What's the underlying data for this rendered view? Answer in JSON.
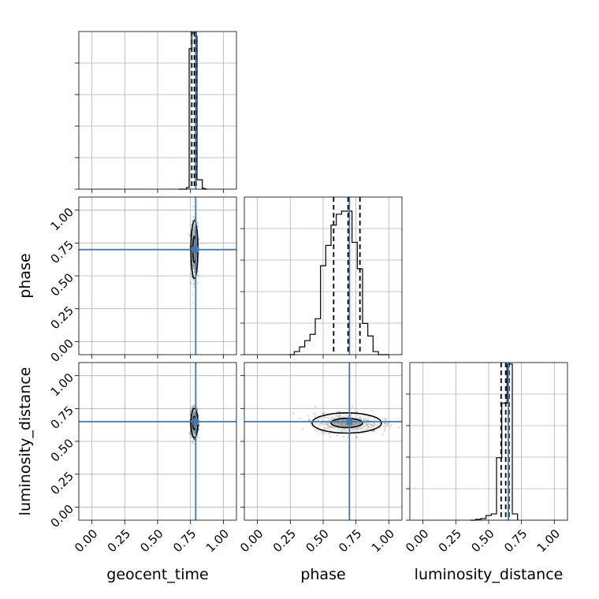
{
  "chart_data": {
    "type": "corner",
    "parameters": [
      "geocent_time",
      "phase",
      "luminosity_distance"
    ],
    "axis_range": [
      -0.1,
      1.1
    ],
    "ticks": [
      0.0,
      0.25,
      0.5,
      0.75,
      1.0
    ],
    "tick_labels": [
      "0.00",
      "0.25",
      "0.50",
      "0.75",
      "1.00"
    ],
    "grid": true,
    "truth_color": "#4477aa",
    "truths": {
      "geocent_time": 0.79,
      "phase": 0.7,
      "luminosity_distance": 0.65
    },
    "histograms": {
      "geocent_time": {
        "bin_edges": [
          0.66,
          0.68,
          0.7,
          0.72,
          0.74,
          0.76,
          0.78,
          0.8,
          0.82,
          0.84,
          0.86,
          0.88
        ],
        "counts": [
          0,
          0,
          0,
          0.01,
          0.9,
          1.0,
          0.98,
          0.06,
          0.06,
          0.005,
          0
        ],
        "quantile_lines": [
          0.76,
          0.78,
          0.793
        ]
      },
      "phase": {
        "bin_edges": [
          0.24,
          0.28,
          0.32,
          0.36,
          0.4,
          0.44,
          0.48,
          0.52,
          0.56,
          0.6,
          0.64,
          0.68,
          0.72,
          0.76,
          0.8,
          0.84,
          0.88,
          0.92,
          0.96,
          1.0
        ],
        "counts": [
          0,
          0.02,
          0.05,
          0.09,
          0.13,
          0.23,
          0.57,
          0.7,
          0.83,
          0.9,
          0.92,
          0.92,
          0.72,
          0.55,
          0.2,
          0.12,
          0.02,
          0,
          0
        ],
        "quantile_lines": [
          0.58,
          0.69,
          0.78
        ]
      },
      "luminosity_distance": {
        "bin_edges": [
          0.36,
          0.4,
          0.44,
          0.48,
          0.52,
          0.56,
          0.6,
          0.64,
          0.68,
          0.72
        ],
        "counts": [
          0,
          0.005,
          0.01,
          0.03,
          0.04,
          0.4,
          0.75,
          1.0,
          0.04
        ],
        "quantile_lines": [
          0.595,
          0.63,
          0.655
        ]
      }
    },
    "scatter_panels": [
      {
        "x": "geocent_time",
        "y": "phase",
        "center": [
          0.78,
          0.7
        ],
        "spread": [
          0.012,
          0.1
        ]
      },
      {
        "x": "geocent_time",
        "y": "luminosity_distance",
        "center": [
          0.78,
          0.64
        ],
        "spread": [
          0.012,
          0.05
        ]
      },
      {
        "x": "phase",
        "y": "luminosity_distance",
        "center": [
          0.68,
          0.64
        ],
        "spread": [
          0.12,
          0.035
        ]
      }
    ]
  }
}
